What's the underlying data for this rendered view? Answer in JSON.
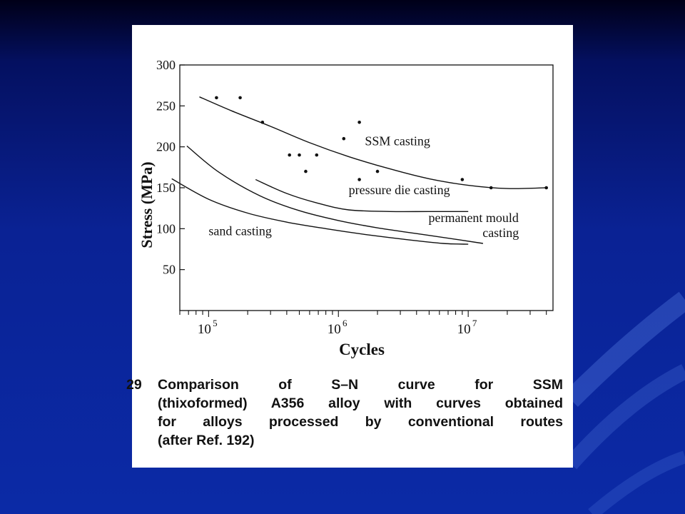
{
  "caption": {
    "number": "29",
    "lines": [
      "Comparison of S–N curve for SSM",
      "(thixoformed) A356 alloy with curves obtained",
      "for alloys processed by conventional routes",
      "(after Ref. 192)"
    ]
  },
  "colors": {
    "background": "#0b2aa6",
    "panel": "#ffffff",
    "ink": "#111111"
  },
  "chart_data": {
    "type": "line",
    "xlabel": "Cycles",
    "ylabel": "Stress (MPa)",
    "x_scale": "log",
    "xlim": [
      60000,
      45000000
    ],
    "ylim": [
      0,
      300
    ],
    "x_ticks": [
      {
        "value": 100000,
        "label": "10",
        "exp": "5"
      },
      {
        "value": 1000000,
        "label": "10",
        "exp": "6"
      },
      {
        "value": 10000000,
        "label": "10",
        "exp": "7"
      }
    ],
    "y_ticks": [
      {
        "value": 50,
        "label": "50"
      },
      {
        "value": 100,
        "label": "100"
      },
      {
        "value": 150,
        "label": "150"
      },
      {
        "value": 200,
        "label": "200"
      },
      {
        "value": 250,
        "label": "250"
      },
      {
        "value": 300,
        "label": "300"
      }
    ],
    "series": [
      {
        "name": "SSM casting",
        "x": [
          85000,
          150000,
          300000,
          600000,
          1200000,
          2500000,
          5000000,
          10000000,
          20000000,
          40000000
        ],
        "y": [
          261,
          244,
          225,
          205,
          188,
          173,
          161,
          153,
          149,
          150
        ],
        "label_x": 1600000,
        "label_y": 202
      },
      {
        "name": "pressure die casting",
        "x": [
          230000,
          400000,
          700000,
          1200000,
          2500000,
          5000000,
          10000000
        ],
        "y": [
          160,
          143,
          131,
          123,
          121,
          121,
          121
        ],
        "label_x": 1200000,
        "label_y": 142
      },
      {
        "name": "permanent mould casting",
        "x": [
          68000,
          120000,
          250000,
          500000,
          1000000,
          2000000,
          4000000,
          8000000,
          13000000
        ],
        "y": [
          201,
          169,
          140,
          122,
          110,
          101,
          94,
          87,
          82
        ],
        "label_x": 11000000,
        "label_y": 108
      },
      {
        "name": "sand casting",
        "x": [
          52000,
          100000,
          200000,
          400000,
          800000,
          1600000,
          3200000,
          6400000,
          10000000
        ],
        "y": [
          161,
          136,
          119,
          108,
          100,
          93,
          87,
          82,
          81
        ],
        "label_x": 100000,
        "label_y": 92
      }
    ],
    "points": [
      {
        "x": 115000,
        "y": 260
      },
      {
        "x": 175000,
        "y": 260
      },
      {
        "x": 260000,
        "y": 230
      },
      {
        "x": 420000,
        "y": 190
      },
      {
        "x": 500000,
        "y": 190
      },
      {
        "x": 560000,
        "y": 170
      },
      {
        "x": 680000,
        "y": 190
      },
      {
        "x": 1100000,
        "y": 210
      },
      {
        "x": 1450000,
        "y": 230
      },
      {
        "x": 1450000,
        "y": 160
      },
      {
        "x": 2000000,
        "y": 170
      },
      {
        "x": 9000000,
        "y": 160
      },
      {
        "x": 15000000,
        "y": 150
      },
      {
        "x": 40000000,
        "y": 150
      }
    ]
  }
}
